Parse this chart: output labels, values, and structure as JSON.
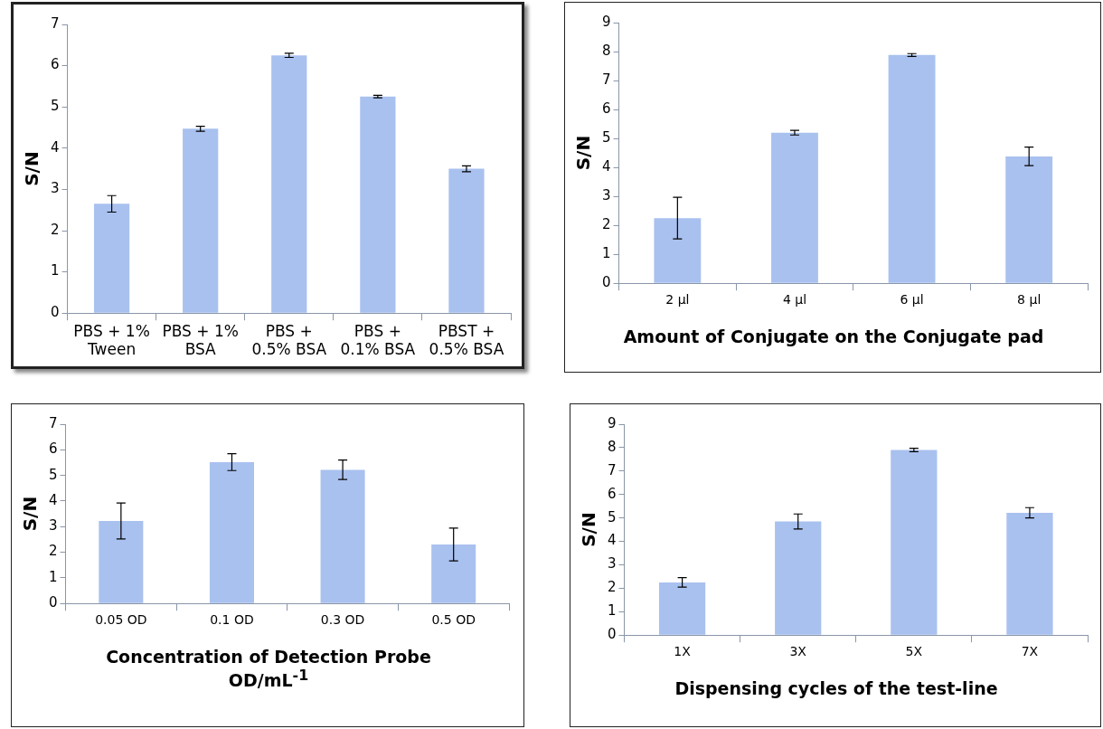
{
  "chart_data": [
    {
      "type": "bar",
      "ylabel": "S/N",
      "categories": [
        "PBS + 1% Tween",
        "PBS + 1% BSA",
        "PBS + 0.5% BSA",
        "PBS + 0.1% BSA",
        "PBST + 0.5% BSA"
      ],
      "values": [
        2.65,
        4.47,
        6.25,
        5.25,
        3.5
      ],
      "errors": [
        0.2,
        0.06,
        0.05,
        0.03,
        0.07
      ],
      "color": "#a9c1ef",
      "ylim": [
        0,
        7
      ],
      "yticks": [
        0,
        1,
        2,
        3,
        4,
        5,
        6,
        7
      ]
    },
    {
      "type": "bar",
      "ylabel": "S/N",
      "xlabel": "Amount of Conjugate on the Conjugate pad",
      "categories": [
        "2 µl",
        "4 µl",
        "6 µl",
        "8 µl"
      ],
      "values": [
        2.25,
        5.2,
        7.88,
        4.38
      ],
      "errors": [
        0.72,
        0.08,
        0.05,
        0.32
      ],
      "color": "#a9c1ef",
      "ylim": [
        0,
        9
      ],
      "yticks": [
        0,
        1,
        2,
        3,
        4,
        5,
        6,
        7,
        8,
        9
      ]
    },
    {
      "type": "bar",
      "ylabel": "S/N",
      "xlabel": "Concentration of Detection Probe OD/mL$^{-1}$",
      "categories": [
        "0.05 OD",
        "0.1 OD",
        "0.3 OD",
        "0.5 OD"
      ],
      "values": [
        3.22,
        5.52,
        5.22,
        2.3
      ],
      "errors": [
        0.7,
        0.33,
        0.38,
        0.64
      ],
      "color": "#a9c1ef",
      "ylim": [
        0,
        7
      ],
      "yticks": [
        0,
        1,
        2,
        3,
        4,
        5,
        6,
        7
      ]
    },
    {
      "type": "bar",
      "ylabel": "S/N",
      "xlabel": "Dispensing cycles of the test-line",
      "categories": [
        "1X",
        "3X",
        "5X",
        "7X"
      ],
      "values": [
        2.25,
        4.85,
        7.9,
        5.22
      ],
      "errors": [
        0.2,
        0.32,
        0.07,
        0.22
      ],
      "color": "#a9c1ef",
      "ylim": [
        0,
        9
      ],
      "yticks": [
        0,
        1,
        2,
        3,
        4,
        5,
        6,
        7,
        8,
        9
      ]
    }
  ]
}
